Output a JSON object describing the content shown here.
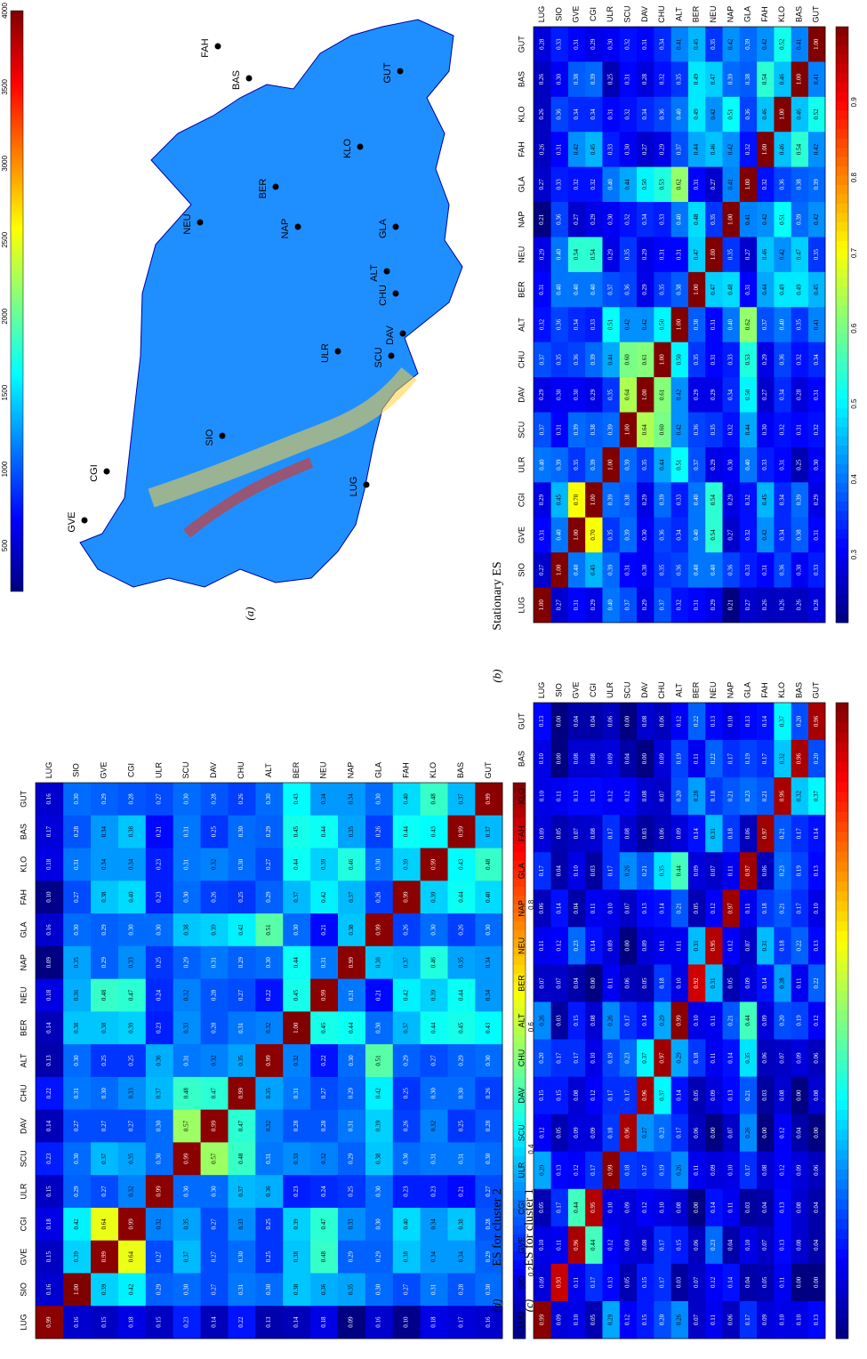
{
  "panels": {
    "a": {
      "label": "(a)"
    },
    "b": {
      "label": "(b)",
      "title": "Stationary ES"
    },
    "c": {
      "label": "(c)",
      "title": "ES for cluster 1"
    },
    "d": {
      "label": "(d)",
      "title": "ES for cluster 2"
    }
  },
  "stations": [
    "GUT",
    "BAS",
    "KLO",
    "FAH",
    "GLA",
    "NAP",
    "NEU",
    "BER",
    "ALT",
    "CHU",
    "DAV",
    "SCU",
    "ULR",
    "CGI",
    "GVE",
    "SIO",
    "LUG"
  ],
  "map": {
    "colorbar_ticks": [
      "4000",
      "3500",
      "3000",
      "2500",
      "2000",
      "1500",
      "1000",
      "500"
    ],
    "station_labels": [
      "GUT",
      "BAS",
      "KLO",
      "FAH",
      "GLA",
      "NAP",
      "NEU",
      "BER",
      "ALT",
      "CHU",
      "DAV",
      "SCU",
      "ULR",
      "CGI",
      "GVE",
      "SIO",
      "LUG"
    ]
  },
  "colorbar_ticks_b": [
    "0.9",
    "0.8",
    "0.7",
    "0.6",
    "0.5",
    "0.4",
    "0.3"
  ],
  "colorbar_ticks_c": [
    "0.8",
    "0.6",
    "0.4",
    "0.2"
  ],
  "colors": {
    "low": "#00008f",
    "mid": "#7fff7f",
    "high": "#800000"
  },
  "chart_data": [
    {
      "type": "heatmap",
      "title": "Stationary ES",
      "x": [
        "GUT",
        "BAS",
        "KLO",
        "FAH",
        "GLA",
        "NAP",
        "NEU",
        "BER",
        "ALT",
        "CHU",
        "DAV",
        "SCU",
        "ULR",
        "CGI",
        "GVE",
        "SIO",
        "LUG"
      ],
      "y": [
        "GUT",
        "BAS",
        "KLO",
        "FAH",
        "GLA",
        "NAP",
        "NEU",
        "BER",
        "ALT",
        "CHU",
        "DAV",
        "SCU",
        "ULR",
        "CGI",
        "GVE",
        "SIO",
        "LUG"
      ],
      "values": [
        [
          1.0,
          0.41,
          0.52,
          0.42,
          0.39,
          0.42,
          0.35,
          0.45,
          0.41,
          0.34,
          0.31,
          0.32,
          0.3,
          0.29,
          0.31,
          0.33,
          0.28
        ],
        [
          0.41,
          1.0,
          0.46,
          0.54,
          0.38,
          0.39,
          0.47,
          0.49,
          0.35,
          0.32,
          0.28,
          0.31,
          0.25,
          0.39,
          0.38,
          0.3,
          0.26
        ],
        [
          0.52,
          0.46,
          1.0,
          0.46,
          0.36,
          0.51,
          0.42,
          0.49,
          0.4,
          0.36,
          0.34,
          0.32,
          0.31,
          0.34,
          0.34,
          0.36,
          0.26
        ],
        [
          0.42,
          0.54,
          0.46,
          1.0,
          0.32,
          0.42,
          0.46,
          0.44,
          0.37,
          0.29,
          0.27,
          0.3,
          0.33,
          0.45,
          0.42,
          0.31,
          0.26
        ],
        [
          0.39,
          0.38,
          0.36,
          0.32,
          1.0,
          0.41,
          0.27,
          0.31,
          0.62,
          0.53,
          0.5,
          0.44,
          0.4,
          0.32,
          0.32,
          0.33,
          0.27
        ],
        [
          0.42,
          0.39,
          0.51,
          0.42,
          0.41,
          1.0,
          0.35,
          0.48,
          0.4,
          0.33,
          0.34,
          0.32,
          0.3,
          0.29,
          0.27,
          0.36,
          0.21
        ],
        [
          0.35,
          0.47,
          0.42,
          0.46,
          0.27,
          0.35,
          1.0,
          0.47,
          0.31,
          0.31,
          0.29,
          0.35,
          0.29,
          0.54,
          0.54,
          0.4,
          0.29
        ],
        [
          0.45,
          0.49,
          0.49,
          0.44,
          0.31,
          0.48,
          0.47,
          1.0,
          0.38,
          0.35,
          0.29,
          0.36,
          0.37,
          0.4,
          0.4,
          0.4,
          0.31
        ],
        [
          0.41,
          0.35,
          0.4,
          0.37,
          0.62,
          0.4,
          0.31,
          0.38,
          1.0,
          0.5,
          0.42,
          0.42,
          0.51,
          0.33,
          0.34,
          0.36,
          0.32
        ],
        [
          0.34,
          0.32,
          0.36,
          0.29,
          0.53,
          0.33,
          0.31,
          0.35,
          0.5,
          1.0,
          0.61,
          0.6,
          0.44,
          0.39,
          0.36,
          0.35,
          0.37
        ],
        [
          0.31,
          0.28,
          0.34,
          0.27,
          0.5,
          0.34,
          0.29,
          0.29,
          0.42,
          0.61,
          1.0,
          0.64,
          0.35,
          0.29,
          0.3,
          0.3,
          0.29
        ],
        [
          0.32,
          0.31,
          0.32,
          0.3,
          0.44,
          0.32,
          0.35,
          0.36,
          0.42,
          0.6,
          0.64,
          1.0,
          0.39,
          0.38,
          0.39,
          0.31,
          0.37
        ],
        [
          0.3,
          0.25,
          0.31,
          0.33,
          0.4,
          0.3,
          0.29,
          0.37,
          0.51,
          0.44,
          0.35,
          0.39,
          1.0,
          0.39,
          0.35,
          0.39,
          0.4
        ],
        [
          0.29,
          0.39,
          0.34,
          0.45,
          0.32,
          0.29,
          0.54,
          0.4,
          0.33,
          0.39,
          0.29,
          0.38,
          0.39,
          1.0,
          0.7,
          0.45,
          0.29
        ],
        [
          0.31,
          0.38,
          0.34,
          0.42,
          0.32,
          0.27,
          0.54,
          0.4,
          0.34,
          0.36,
          0.3,
          0.39,
          0.35,
          0.7,
          1.0,
          0.4,
          0.31
        ],
        [
          0.33,
          0.3,
          0.36,
          0.31,
          0.33,
          0.36,
          0.4,
          0.4,
          0.36,
          0.35,
          0.3,
          0.31,
          0.39,
          0.45,
          0.4,
          1.0,
          0.27
        ],
        [
          0.28,
          0.26,
          0.26,
          0.26,
          0.27,
          0.21,
          0.29,
          0.31,
          0.32,
          0.37,
          0.29,
          0.37,
          0.4,
          0.29,
          0.31,
          0.27,
          1.0
        ]
      ],
      "colorbar_range": [
        0.21,
        1.0
      ]
    },
    {
      "type": "heatmap",
      "title": "ES for cluster 1",
      "x": [
        "GUT",
        "BAS",
        "KLO",
        "FAH",
        "GLA",
        "NAP",
        "NEU",
        "BER",
        "ALT",
        "CHU",
        "DAV",
        "SCU",
        "ULR",
        "CGI",
        "GVE",
        "SIO",
        "LUG"
      ],
      "y": [
        "GUT",
        "BAS",
        "KLO",
        "FAH",
        "GLA",
        "NAP",
        "NEU",
        "BER",
        "ALT",
        "CHU",
        "DAV",
        "SCU",
        "ULR",
        "CGI",
        "GVE",
        "SIO",
        "LUG"
      ],
      "values": [
        [
          0.99,
          0.37,
          0.48,
          0.4,
          0.3,
          0.34,
          0.34,
          0.43,
          0.3,
          0.26,
          0.28,
          0.3,
          0.27,
          0.28,
          0.29,
          0.3,
          0.16
        ],
        [
          0.37,
          0.99,
          0.43,
          0.44,
          0.26,
          0.35,
          0.44,
          0.45,
          0.29,
          0.3,
          0.25,
          0.31,
          0.21,
          0.38,
          0.34,
          0.28,
          0.17
        ],
        [
          0.48,
          0.43,
          0.99,
          0.39,
          0.3,
          0.46,
          0.39,
          0.44,
          0.27,
          0.3,
          0.32,
          0.31,
          0.23,
          0.34,
          0.34,
          0.31,
          0.18
        ],
        [
          0.4,
          0.44,
          0.39,
          0.99,
          0.26,
          0.37,
          0.42,
          0.37,
          0.29,
          0.25,
          0.26,
          0.3,
          0.23,
          0.4,
          0.38,
          0.27,
          0.1
        ],
        [
          0.3,
          0.26,
          0.3,
          0.26,
          0.99,
          0.38,
          0.21,
          0.3,
          0.51,
          0.42,
          0.39,
          0.38,
          0.3,
          0.3,
          0.29,
          0.3,
          0.16
        ],
        [
          0.34,
          0.35,
          0.46,
          0.37,
          0.38,
          0.99,
          0.31,
          0.44,
          0.3,
          0.29,
          0.31,
          0.29,
          0.25,
          0.33,
          0.29,
          0.35,
          0.09
        ],
        [
          0.34,
          0.44,
          0.39,
          0.42,
          0.21,
          0.31,
          0.99,
          0.45,
          0.22,
          0.27,
          0.28,
          0.32,
          0.24,
          0.47,
          0.48,
          0.36,
          0.18
        ],
        [
          0.43,
          0.45,
          0.44,
          0.37,
          0.3,
          0.44,
          0.45,
          1.0,
          0.32,
          0.31,
          0.28,
          0.33,
          0.23,
          0.39,
          0.38,
          0.38,
          0.14
        ],
        [
          0.3,
          0.29,
          0.27,
          0.29,
          0.51,
          0.3,
          0.22,
          0.32,
          0.99,
          0.35,
          0.32,
          0.31,
          0.36,
          0.25,
          0.25,
          0.3,
          0.13
        ],
        [
          0.26,
          0.3,
          0.3,
          0.25,
          0.42,
          0.29,
          0.27,
          0.31,
          0.35,
          0.99,
          0.47,
          0.48,
          0.37,
          0.33,
          0.3,
          0.31,
          0.22
        ],
        [
          0.28,
          0.25,
          0.32,
          0.26,
          0.39,
          0.31,
          0.28,
          0.28,
          0.32,
          0.47,
          0.99,
          0.57,
          0.3,
          0.27,
          0.27,
          0.27,
          0.14
        ],
        [
          0.3,
          0.31,
          0.31,
          0.3,
          0.38,
          0.29,
          0.32,
          0.33,
          0.31,
          0.48,
          0.57,
          0.99,
          0.3,
          0.35,
          0.37,
          0.3,
          0.23
        ],
        [
          0.27,
          0.21,
          0.23,
          0.23,
          0.3,
          0.25,
          0.24,
          0.23,
          0.36,
          0.37,
          0.3,
          0.3,
          0.99,
          0.32,
          0.27,
          0.29,
          0.15
        ],
        [
          0.28,
          0.38,
          0.34,
          0.4,
          0.3,
          0.33,
          0.47,
          0.39,
          0.25,
          0.33,
          0.27,
          0.35,
          0.32,
          0.99,
          0.64,
          0.42,
          0.18
        ],
        [
          0.29,
          0.34,
          0.34,
          0.38,
          0.29,
          0.29,
          0.48,
          0.38,
          0.25,
          0.3,
          0.27,
          0.37,
          0.27,
          0.64,
          0.99,
          0.39,
          0.15
        ],
        [
          0.3,
          0.28,
          0.31,
          0.27,
          0.3,
          0.35,
          0.36,
          0.38,
          0.3,
          0.31,
          0.27,
          0.3,
          0.29,
          0.42,
          0.39,
          1.0,
          0.16
        ],
        [
          0.16,
          0.17,
          0.18,
          0.1,
          0.16,
          0.09,
          0.18,
          0.14,
          0.13,
          0.22,
          0.14,
          0.23,
          0.15,
          0.18,
          0.15,
          0.16,
          0.99
        ]
      ],
      "colorbar_range": [
        0.09,
        1.0
      ]
    },
    {
      "type": "heatmap",
      "title": "ES for cluster 2",
      "x": [
        "GUT",
        "BAS",
        "KLO",
        "FAH",
        "GLA",
        "NAP",
        "NEU",
        "BER",
        "ALT",
        "CHU",
        "DAV",
        "SCU",
        "ULR",
        "CGI",
        "GVE",
        "SIO",
        "LUG"
      ],
      "y": [
        "GUT",
        "BAS",
        "KLO",
        "FAH",
        "GLA",
        "NAP",
        "NEU",
        "BER",
        "ALT",
        "CHU",
        "DAV",
        "SCU",
        "ULR",
        "CGI",
        "GVE",
        "SIO",
        "LUG"
      ],
      "values": [
        [
          0.96,
          0.2,
          0.37,
          0.14,
          0.13,
          0.1,
          0.13,
          0.22,
          0.12,
          0.06,
          0.08,
          0.0,
          0.06,
          0.04,
          0.04,
          0.0,
          0.13
        ],
        [
          0.2,
          0.96,
          0.32,
          0.17,
          0.19,
          0.17,
          0.22,
          0.11,
          0.19,
          0.09,
          0.0,
          0.04,
          0.09,
          0.08,
          0.08,
          0.0,
          0.1
        ],
        [
          0.37,
          0.32,
          0.96,
          0.21,
          0.23,
          0.21,
          0.18,
          0.28,
          0.2,
          0.07,
          0.08,
          0.12,
          0.12,
          0.13,
          0.13,
          0.11,
          0.1
        ],
        [
          0.14,
          0.17,
          0.21,
          0.97,
          0.06,
          0.18,
          0.31,
          0.14,
          0.09,
          0.06,
          0.03,
          0.08,
          0.17,
          0.08,
          0.07,
          0.05,
          0.09
        ],
        [
          0.13,
          0.19,
          0.23,
          0.06,
          0.97,
          0.11,
          0.07,
          0.09,
          0.44,
          0.35,
          0.21,
          0.26,
          0.17,
          0.03,
          0.1,
          0.04,
          0.17
        ],
        [
          0.1,
          0.17,
          0.21,
          0.18,
          0.11,
          0.97,
          0.12,
          0.05,
          0.21,
          0.14,
          0.13,
          0.07,
          0.1,
          0.11,
          0.04,
          0.14,
          0.06
        ],
        [
          0.13,
          0.22,
          0.18,
          0.31,
          0.07,
          0.12,
          0.95,
          0.31,
          0.11,
          0.11,
          0.09,
          0.0,
          0.09,
          0.14,
          0.23,
          0.12,
          0.11
        ],
        [
          0.22,
          0.11,
          0.28,
          0.14,
          0.09,
          0.05,
          0.31,
          0.92,
          0.1,
          0.18,
          0.05,
          0.06,
          0.11,
          0.0,
          0.04,
          0.07,
          0.07
        ],
        [
          0.12,
          0.19,
          0.2,
          0.09,
          0.44,
          0.21,
          0.11,
          0.1,
          0.99,
          0.29,
          0.14,
          0.17,
          0.26,
          0.08,
          0.15,
          0.03,
          0.26
        ],
        [
          0.06,
          0.09,
          0.07,
          0.06,
          0.35,
          0.14,
          0.11,
          0.18,
          0.29,
          0.97,
          0.37,
          0.23,
          0.19,
          0.1,
          0.17,
          0.17,
          0.2
        ],
        [
          0.08,
          0.0,
          0.08,
          0.03,
          0.21,
          0.13,
          0.09,
          0.05,
          0.14,
          0.37,
          0.96,
          0.17,
          0.17,
          0.12,
          0.08,
          0.15,
          0.15
        ],
        [
          0.0,
          0.04,
          0.12,
          0.0,
          0.26,
          0.07,
          0.0,
          0.06,
          0.17,
          0.23,
          0.27,
          0.96,
          0.18,
          0.09,
          0.09,
          0.05,
          0.12
        ],
        [
          0.06,
          0.09,
          0.12,
          0.08,
          0.17,
          0.1,
          0.09,
          0.11,
          0.26,
          0.19,
          0.17,
          0.18,
          0.99,
          0.17,
          0.12,
          0.13,
          0.29
        ],
        [
          0.04,
          0.08,
          0.13,
          0.04,
          0.03,
          0.11,
          0.14,
          0.0,
          0.08,
          0.1,
          0.12,
          0.09,
          0.1,
          0.95,
          0.44,
          0.17,
          0.05
        ],
        [
          0.04,
          0.08,
          0.13,
          0.07,
          0.1,
          0.04,
          0.23,
          0.06,
          0.15,
          0.17,
          0.08,
          0.09,
          0.12,
          0.44,
          0.96,
          0.11,
          0.1
        ],
        [
          0.0,
          0.0,
          0.11,
          0.05,
          0.04,
          0.14,
          0.12,
          0.07,
          0.03,
          0.17,
          0.15,
          0.05,
          0.13,
          0.17,
          0.11,
          0.93,
          0.09
        ],
        [
          0.13,
          0.1,
          0.1,
          0.09,
          0.17,
          0.06,
          0.11,
          0.07,
          0.26,
          0.2,
          0.15,
          0.12,
          0.29,
          0.05,
          0.1,
          0.09,
          0.99
        ]
      ],
      "colorbar_range": [
        0.0,
        1.0
      ]
    }
  ]
}
